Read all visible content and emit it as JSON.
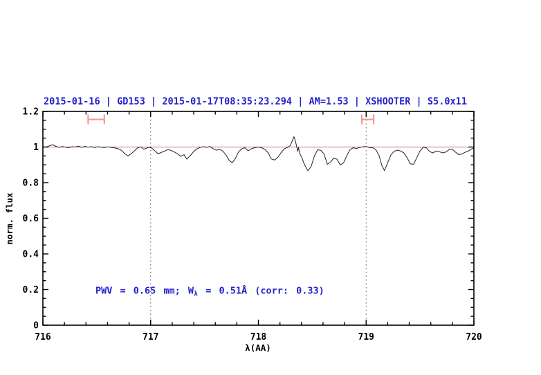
{
  "figure": {
    "background": "#ffffff",
    "accent_blue": "#2222cc",
    "continuum_color": "#e25d5d",
    "marker_color": "#f09a9a",
    "curve_color": "#2a2a2a",
    "gridline_color": "#444444"
  },
  "chart_data": {
    "type": "line",
    "title": "2015-01-16 | GD153 | 2015-01-17T08:35:23.294 | AM=1.53 | XSHOOTER | S5.0x11",
    "xlabel": "λ(AA)",
    "ylabel": "norm. flux",
    "xlim": [
      716,
      720
    ],
    "ylim": [
      0,
      1.2
    ],
    "x_major_ticks": [
      716,
      717,
      718,
      719,
      720
    ],
    "x_tick_labels": [
      "716",
      "717",
      "718",
      "719",
      "720"
    ],
    "x_minor_step": 0.2,
    "y_major_ticks": [
      0,
      0.2,
      0.4,
      0.6,
      0.8,
      1,
      1.2
    ],
    "y_tick_labels": [
      "0",
      "0.2",
      "0.4",
      "0.6",
      "0.8",
      "1",
      "1.2"
    ],
    "y_minor_step": 0.05,
    "grid_vlines_dotted": [
      717,
      719
    ],
    "continuum_level": 1.0,
    "band_markers": [
      {
        "x_start": 716.42,
        "x_end": 716.57,
        "y": 1.155
      },
      {
        "x_start": 718.96,
        "x_end": 719.07,
        "y": 1.155
      }
    ],
    "annotation": {
      "pre": "PWV = 0.65 mm; W",
      "sub": "λ",
      "post": " = 0.51Å (corr: 0.33)",
      "x": 716.49,
      "y": 0.195
    },
    "legend": "none",
    "grid": "off",
    "series": [
      {
        "name": "normalized-spectrum",
        "points": [
          [
            716.0,
            1.001
          ],
          [
            716.03,
            0.999
          ],
          [
            716.06,
            1.007
          ],
          [
            716.09,
            1.013
          ],
          [
            716.12,
            1.004
          ],
          [
            716.15,
            0.998
          ],
          [
            716.18,
            1.003
          ],
          [
            716.21,
            0.999
          ],
          [
            716.24,
            0.996
          ],
          [
            716.27,
            1.002
          ],
          [
            716.3,
            1.0
          ],
          [
            716.33,
            1.005
          ],
          [
            716.36,
            0.998
          ],
          [
            716.39,
            1.004
          ],
          [
            716.42,
            0.999
          ],
          [
            716.45,
            1.002
          ],
          [
            716.48,
            0.997
          ],
          [
            716.51,
            1.002
          ],
          [
            716.54,
            0.999
          ],
          [
            716.57,
            0.997
          ],
          [
            716.6,
            1.001
          ],
          [
            716.63,
            0.998
          ],
          [
            716.66,
            0.996
          ],
          [
            716.7,
            0.99
          ],
          [
            716.73,
            0.981
          ],
          [
            716.76,
            0.962
          ],
          [
            716.79,
            0.95
          ],
          [
            716.82,
            0.962
          ],
          [
            716.85,
            0.979
          ],
          [
            716.88,
            0.996
          ],
          [
            716.91,
            1.001
          ],
          [
            716.935,
            0.988
          ],
          [
            716.96,
            0.993
          ],
          [
            716.985,
            0.999
          ],
          [
            717.01,
            0.994
          ],
          [
            717.04,
            0.978
          ],
          [
            717.07,
            0.962
          ],
          [
            717.1,
            0.97
          ],
          [
            717.13,
            0.977
          ],
          [
            717.16,
            0.986
          ],
          [
            717.19,
            0.981
          ],
          [
            717.22,
            0.972
          ],
          [
            717.25,
            0.962
          ],
          [
            717.28,
            0.948
          ],
          [
            717.31,
            0.957
          ],
          [
            717.335,
            0.932
          ],
          [
            717.365,
            0.95
          ],
          [
            717.4,
            0.975
          ],
          [
            717.43,
            0.99
          ],
          [
            717.46,
            0.998
          ],
          [
            717.49,
            1.002
          ],
          [
            717.52,
            0.998
          ],
          [
            717.55,
            1.003
          ],
          [
            717.58,
            0.991
          ],
          [
            717.61,
            0.982
          ],
          [
            717.64,
            0.988
          ],
          [
            717.67,
            0.977
          ],
          [
            717.7,
            0.955
          ],
          [
            717.73,
            0.924
          ],
          [
            717.757,
            0.912
          ],
          [
            717.785,
            0.934
          ],
          [
            717.815,
            0.972
          ],
          [
            717.845,
            0.99
          ],
          [
            717.875,
            0.996
          ],
          [
            717.905,
            0.979
          ],
          [
            717.935,
            0.99
          ],
          [
            717.965,
            0.996
          ],
          [
            718.0,
            1.0
          ],
          [
            718.03,
            0.996
          ],
          [
            718.06,
            0.987
          ],
          [
            718.09,
            0.968
          ],
          [
            718.12,
            0.933
          ],
          [
            718.15,
            0.927
          ],
          [
            718.18,
            0.942
          ],
          [
            718.21,
            0.968
          ],
          [
            718.24,
            0.99
          ],
          [
            718.27,
            0.998
          ],
          [
            718.295,
            1.008
          ],
          [
            718.315,
            1.035
          ],
          [
            718.33,
            1.058
          ],
          [
            718.345,
            1.03
          ],
          [
            718.355,
            1.003
          ],
          [
            718.365,
            0.975
          ],
          [
            718.372,
            0.998
          ],
          [
            718.385,
            0.962
          ],
          [
            718.4,
            0.945
          ],
          [
            718.43,
            0.898
          ],
          [
            718.46,
            0.866
          ],
          [
            718.49,
            0.892
          ],
          [
            718.52,
            0.95
          ],
          [
            718.55,
            0.985
          ],
          [
            718.58,
            0.981
          ],
          [
            718.61,
            0.96
          ],
          [
            718.64,
            0.903
          ],
          [
            718.67,
            0.916
          ],
          [
            718.7,
            0.938
          ],
          [
            718.73,
            0.931
          ],
          [
            718.76,
            0.899
          ],
          [
            718.79,
            0.911
          ],
          [
            718.82,
            0.951
          ],
          [
            718.85,
            0.985
          ],
          [
            718.88,
            0.996
          ],
          [
            718.91,
            0.991
          ],
          [
            718.94,
            0.998
          ],
          [
            718.97,
            1.001
          ],
          [
            719.0,
            1.003
          ],
          [
            719.03,
            0.997
          ],
          [
            719.06,
            0.996
          ],
          [
            719.09,
            0.986
          ],
          [
            719.12,
            0.952
          ],
          [
            719.145,
            0.898
          ],
          [
            719.17,
            0.868
          ],
          [
            719.2,
            0.912
          ],
          [
            719.23,
            0.956
          ],
          [
            719.26,
            0.976
          ],
          [
            719.29,
            0.982
          ],
          [
            719.32,
            0.978
          ],
          [
            719.35,
            0.967
          ],
          [
            719.38,
            0.94
          ],
          [
            719.41,
            0.906
          ],
          [
            719.44,
            0.903
          ],
          [
            719.47,
            0.94
          ],
          [
            719.5,
            0.978
          ],
          [
            719.53,
            0.999
          ],
          [
            719.56,
            0.995
          ],
          [
            719.59,
            0.974
          ],
          [
            719.62,
            0.967
          ],
          [
            719.65,
            0.978
          ],
          [
            719.68,
            0.974
          ],
          [
            719.71,
            0.967
          ],
          [
            719.74,
            0.972
          ],
          [
            719.77,
            0.985
          ],
          [
            719.8,
            0.988
          ],
          [
            719.83,
            0.971
          ],
          [
            719.86,
            0.957
          ],
          [
            719.89,
            0.961
          ],
          [
            719.92,
            0.971
          ],
          [
            719.95,
            0.978
          ],
          [
            719.98,
            0.99
          ],
          [
            720.0,
            0.994
          ]
        ]
      }
    ]
  }
}
